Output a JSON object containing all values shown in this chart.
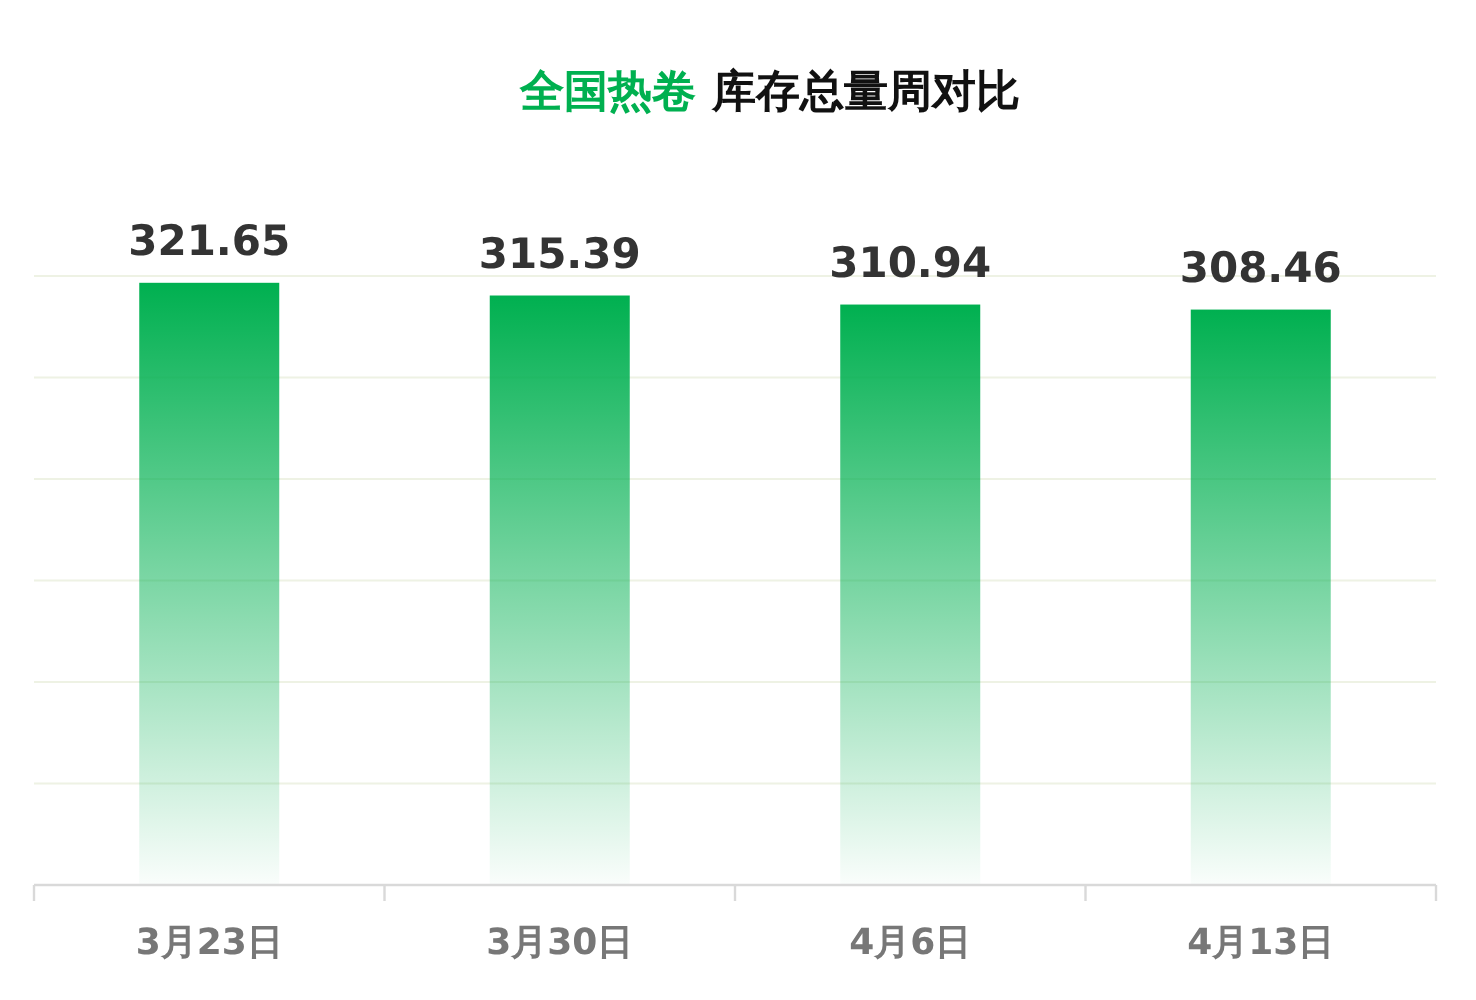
{
  "chart_data": {
    "type": "bar",
    "title": "全国热卷 库存总量周对比",
    "categories": [
      "3月23日",
      "3月30日",
      "4月6日",
      "4月13日"
    ],
    "values": [
      321.65,
      315.39,
      310.94,
      308.46
    ],
    "color": "#00b050",
    "data_labels": true,
    "ylim": [
      25,
      325
    ],
    "yticks": [
      {
        "value": 25,
        "label": null
      },
      {
        "value": 75,
        "label": null
      },
      {
        "value": 125,
        "label": null
      },
      {
        "value": 175,
        "label": null
      },
      {
        "value": 225,
        "label": null
      },
      {
        "value": 275,
        "label": null
      },
      {
        "value": 325,
        "label": null
      }
    ],
    "tick_labels": "x",
    "grid": "y"
  }
}
